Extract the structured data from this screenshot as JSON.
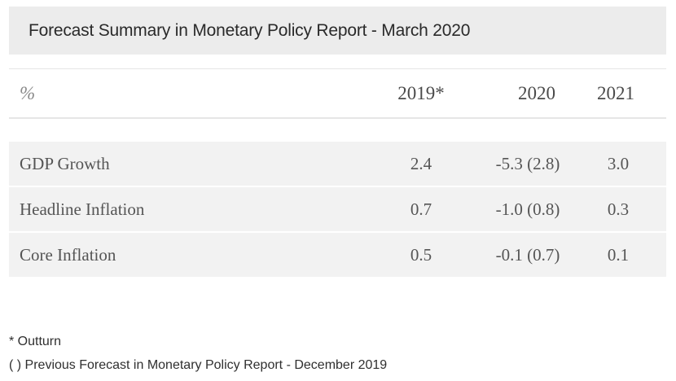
{
  "title": "Forecast Summary in Monetary Policy Report - March 2020",
  "table": {
    "header": {
      "unit": "%",
      "columns": [
        "2019*",
        "2020",
        "2021"
      ]
    },
    "rows": [
      {
        "label": "GDP Growth",
        "values": [
          "2.4",
          "-5.3 (2.8)",
          "3.0"
        ]
      },
      {
        "label": "Headline Inflation",
        "values": [
          "0.7",
          "-1.0 (0.8)",
          "0.3"
        ]
      },
      {
        "label": "Core Inflation",
        "values": [
          "0.5",
          "-0.1 (0.7)",
          "0.1"
        ]
      }
    ]
  },
  "footnotes": {
    "outturn": "* Outturn",
    "previous": "( ) Previous Forecast in Monetary Policy Report - December 2019"
  }
}
